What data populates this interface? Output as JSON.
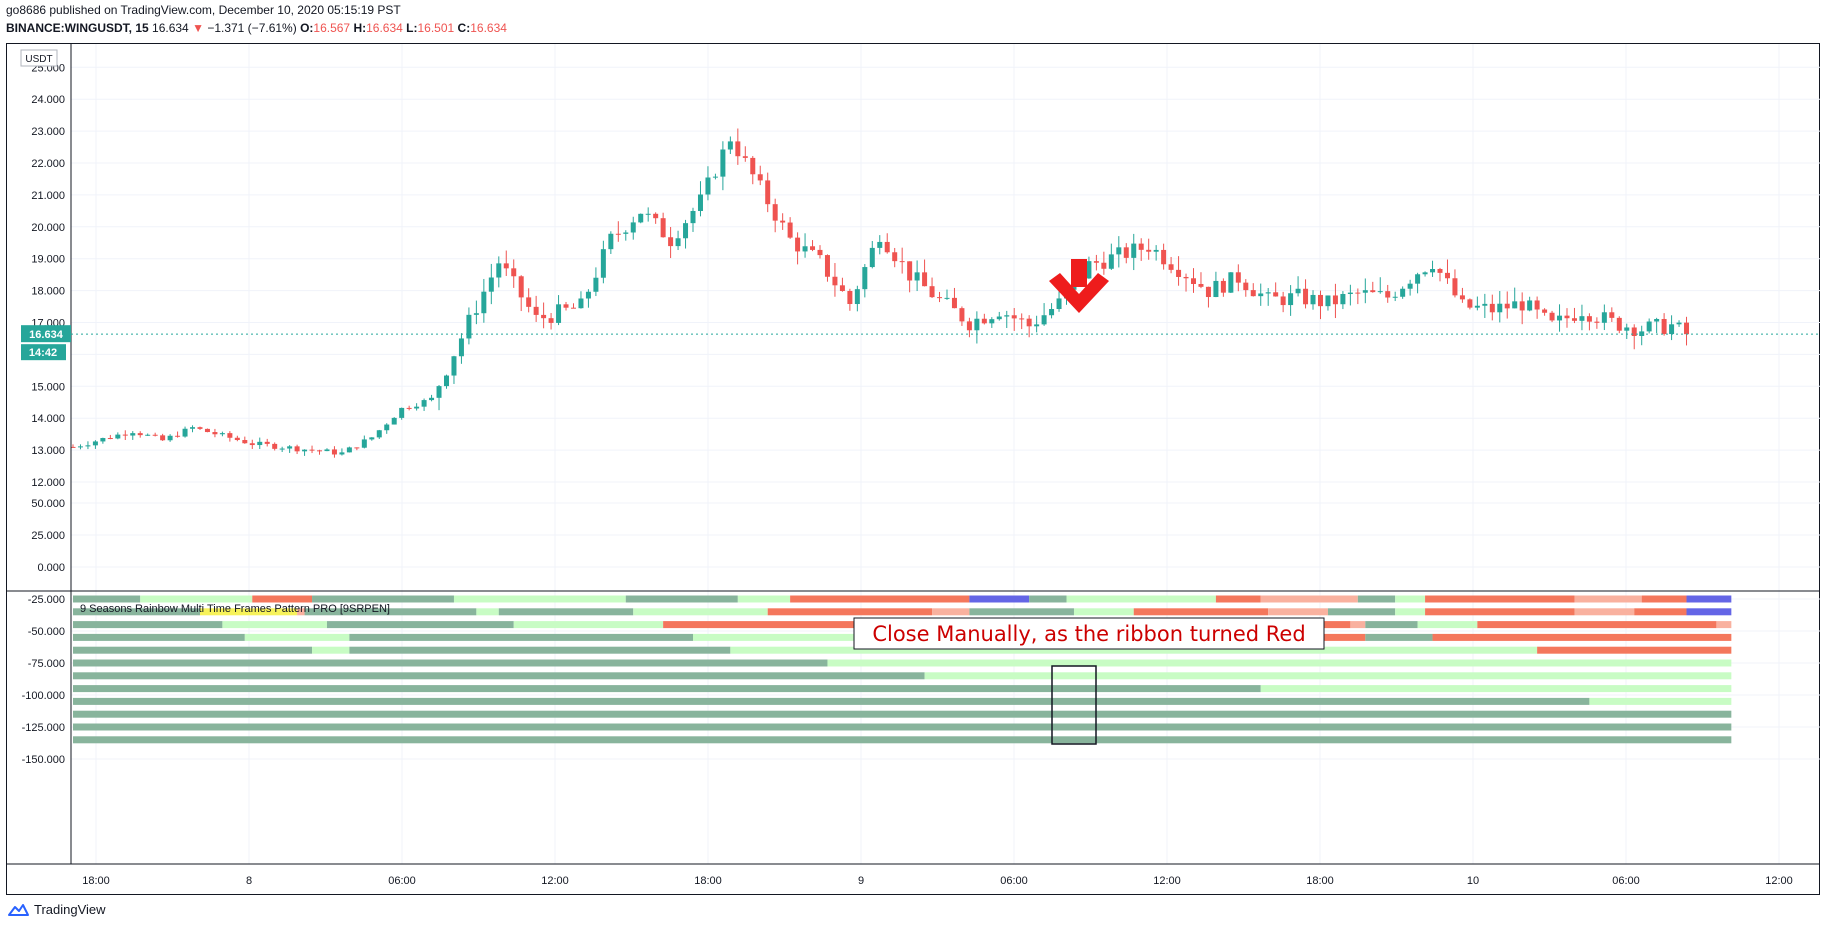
{
  "header": {
    "publisher_line": "go8686 published on TradingView.com, December 10, 2020 05:15:19 PST",
    "symbol": "BINANCE:WINGUSDT, 15",
    "last": "16.634",
    "change_arrow": "▼",
    "change": "−1.371 (−7.61%)",
    "o_label": "O:",
    "o_value": "16.567",
    "h_label": "H:",
    "h_value": "16.634",
    "l_label": "L:",
    "l_value": "16.501",
    "c_label": "C:",
    "c_value": "16.634"
  },
  "price_pane": {
    "currency_badge": "USDT",
    "last_price_label": "16.634",
    "countdown_label": "14:42"
  },
  "indicator_pane": {
    "name": "9 Seasons Rainbow Multi Time Frames Pattern PRO [9SRPEN]",
    "annotation": "Close Manually, as the ribbon turned Red"
  },
  "branding": {
    "label": "TradingView"
  },
  "colors": {
    "up": "#26a69a",
    "down": "#ef5350",
    "ribbon_dark_green": "#88b49c",
    "ribbon_light_green": "#c8fcc4",
    "ribbon_red": "#f4775c",
    "ribbon_light_red": "#f9b19f",
    "ribbon_yellow": "#f7f25a",
    "ribbon_blue": "#6465e6",
    "arrow": "#ee1c1c",
    "annotation_text": "#cc0000"
  },
  "chart_data": [
    {
      "type": "candlestick",
      "title": "BINANCE:WINGUSDT, 15",
      "ylabel": "USDT",
      "ylim": [
        12,
        25
      ],
      "y_ticks": [
        "12.000",
        "13.000",
        "14.000",
        "15.000",
        "16.000",
        "17.000",
        "18.000",
        "19.000",
        "20.000",
        "21.000",
        "22.000",
        "23.000",
        "24.000",
        "25.000"
      ],
      "x_ticks": [
        "18:00",
        "8",
        "06:00",
        "12:00",
        "18:00",
        "9",
        "06:00",
        "12:00",
        "18:00",
        "10",
        "06:00",
        "12:00"
      ],
      "last_price": 16.634,
      "anchors": [
        {
          "t": 0,
          "p": 13.1
        },
        {
          "t": 8,
          "p": 13.6
        },
        {
          "t": 12,
          "p": 13.3
        },
        {
          "t": 16,
          "p": 13.7
        },
        {
          "t": 24,
          "p": 13.2
        },
        {
          "t": 32,
          "p": 13.0
        },
        {
          "t": 36,
          "p": 12.9
        },
        {
          "t": 40,
          "p": 13.4
        },
        {
          "t": 44,
          "p": 14.3
        },
        {
          "t": 48,
          "p": 14.6
        },
        {
          "t": 54,
          "p": 17.5
        },
        {
          "t": 57,
          "p": 18.9
        },
        {
          "t": 62,
          "p": 17.1
        },
        {
          "t": 68,
          "p": 17.5
        },
        {
          "t": 72,
          "p": 19.6
        },
        {
          "t": 76,
          "p": 20.5
        },
        {
          "t": 80,
          "p": 19.6
        },
        {
          "t": 84,
          "p": 20.8
        },
        {
          "t": 88,
          "p": 22.8
        },
        {
          "t": 92,
          "p": 21.2
        },
        {
          "t": 96,
          "p": 19.6
        },
        {
          "t": 100,
          "p": 18.9
        },
        {
          "t": 104,
          "p": 17.6
        },
        {
          "t": 108,
          "p": 19.8
        },
        {
          "t": 112,
          "p": 18.5
        },
        {
          "t": 116,
          "p": 17.7
        },
        {
          "t": 120,
          "p": 17.0
        },
        {
          "t": 124,
          "p": 17.4
        },
        {
          "t": 128,
          "p": 16.9
        },
        {
          "t": 132,
          "p": 17.6
        },
        {
          "t": 136,
          "p": 18.8
        },
        {
          "t": 140,
          "p": 19.1
        },
        {
          "t": 144,
          "p": 19.4
        },
        {
          "t": 148,
          "p": 18.7
        },
        {
          "t": 152,
          "p": 18.0
        },
        {
          "t": 156,
          "p": 18.4
        },
        {
          "t": 160,
          "p": 17.7
        },
        {
          "t": 164,
          "p": 17.8
        },
        {
          "t": 168,
          "p": 17.6
        },
        {
          "t": 172,
          "p": 17.9
        },
        {
          "t": 176,
          "p": 17.8
        },
        {
          "t": 180,
          "p": 18.6
        },
        {
          "t": 182,
          "p": 18.9
        },
        {
          "t": 186,
          "p": 17.5
        },
        {
          "t": 190,
          "p": 17.4
        },
        {
          "t": 194,
          "p": 17.6
        },
        {
          "t": 198,
          "p": 16.9
        },
        {
          "t": 202,
          "p": 17.4
        },
        {
          "t": 206,
          "p": 17.0
        },
        {
          "t": 210,
          "p": 16.8
        },
        {
          "t": 214,
          "p": 16.9
        },
        {
          "t": 216,
          "p": 16.63
        }
      ]
    },
    {
      "type": "heatmap",
      "title": "9 Seasons Rainbow Multi Time Frames Pattern PRO [9SRPEN]",
      "ylim": [
        -150,
        50
      ],
      "y_ticks": [
        "50.000",
        "25.000",
        "0.000",
        "-25.000",
        "-50.000",
        "-75.000",
        "-100.000",
        "-125.000",
        "-150.000"
      ],
      "rows": [
        {
          "y": -25,
          "segments": [
            [
              "D",
              0,
              9
            ],
            [
              "L",
              9,
              24
            ],
            [
              "R",
              24,
              32
            ],
            [
              "D",
              32,
              51
            ],
            [
              "L",
              51,
              74
            ],
            [
              "D",
              74,
              89
            ],
            [
              "L",
              89,
              96
            ],
            [
              "R",
              96,
              120
            ],
            [
              "B",
              120,
              128
            ],
            [
              "D",
              128,
              133
            ],
            [
              "L",
              133,
              153
            ],
            [
              "R",
              153,
              159
            ],
            [
              "P",
              159,
              172
            ],
            [
              "D",
              172,
              177
            ],
            [
              "L",
              177,
              181
            ],
            [
              "R",
              181,
              201
            ],
            [
              "P",
              201,
              210
            ],
            [
              "R",
              210,
              216
            ],
            [
              "B",
              216,
              222
            ]
          ]
        },
        {
          "y": -35,
          "segments": [
            [
              "D",
              0,
              17
            ],
            [
              "Y",
              17,
              30
            ],
            [
              "P",
              30,
              31
            ],
            [
              "D",
              31,
              54
            ],
            [
              "L",
              54,
              57
            ],
            [
              "D",
              57,
              75
            ],
            [
              "L",
              75,
              93
            ],
            [
              "R",
              93,
              115
            ],
            [
              "P",
              115,
              120
            ],
            [
              "D",
              120,
              134
            ],
            [
              "L",
              134,
              142
            ],
            [
              "R",
              142,
              160
            ],
            [
              "P",
              160,
              168
            ],
            [
              "D",
              168,
              177
            ],
            [
              "L",
              177,
              181
            ],
            [
              "R",
              181,
              201
            ],
            [
              "P",
              201,
              209
            ],
            [
              "R",
              209,
              216
            ],
            [
              "B",
              216,
              222
            ]
          ]
        },
        {
          "y": -45,
          "segments": [
            [
              "D",
              0,
              20
            ],
            [
              "L",
              20,
              34
            ],
            [
              "D",
              34,
              59
            ],
            [
              "L",
              59,
              79
            ],
            [
              "R",
              79,
              121
            ],
            [
              "D",
              121,
              140
            ],
            [
              "L",
              140,
              148
            ],
            [
              "R",
              148,
              171
            ],
            [
              "P",
              171,
              173
            ],
            [
              "D",
              173,
              180
            ],
            [
              "L",
              180,
              188
            ],
            [
              "R",
              188,
              220
            ],
            [
              "P",
              220,
              222
            ]
          ]
        },
        {
          "y": -55,
          "segments": [
            [
              "D",
              0,
              23
            ],
            [
              "L",
              23,
              37
            ],
            [
              "D",
              37,
              83
            ],
            [
              "L",
              83,
              119
            ],
            [
              "R",
              119,
              124
            ],
            [
              "W",
              124,
              126
            ],
            [
              "D",
              126,
              144
            ],
            [
              "L",
              144,
              158
            ],
            [
              "R",
              158,
              173
            ],
            [
              "D",
              173,
              182
            ],
            [
              "R",
              182,
              222
            ]
          ]
        },
        {
          "y": -65,
          "segments": [
            [
              "D",
              0,
              32
            ],
            [
              "L",
              32,
              37
            ],
            [
              "D",
              37,
              88
            ],
            [
              "L",
              88,
              196
            ],
            [
              "R",
              196,
              222
            ]
          ]
        },
        {
          "y": -75,
          "segments": [
            [
              "D",
              0,
              101
            ],
            [
              "L",
              101,
              222
            ]
          ]
        },
        {
          "y": -85,
          "segments": [
            [
              "D",
              0,
              114
            ],
            [
              "L",
              114,
              222
            ]
          ]
        },
        {
          "y": -95,
          "segments": [
            [
              "D",
              0,
              159
            ],
            [
              "L",
              159,
              222
            ]
          ]
        },
        {
          "y": -105,
          "segments": [
            [
              "D",
              0,
              203
            ],
            [
              "L",
              203,
              222
            ]
          ]
        },
        {
          "y": -115,
          "segments": [
            [
              "D",
              0,
              222
            ]
          ]
        },
        {
          "y": -125,
          "segments": [
            [
              "D",
              0,
              222
            ]
          ]
        },
        {
          "y": -135,
          "segments": [
            [
              "D",
              0,
              222
            ]
          ]
        }
      ]
    }
  ]
}
